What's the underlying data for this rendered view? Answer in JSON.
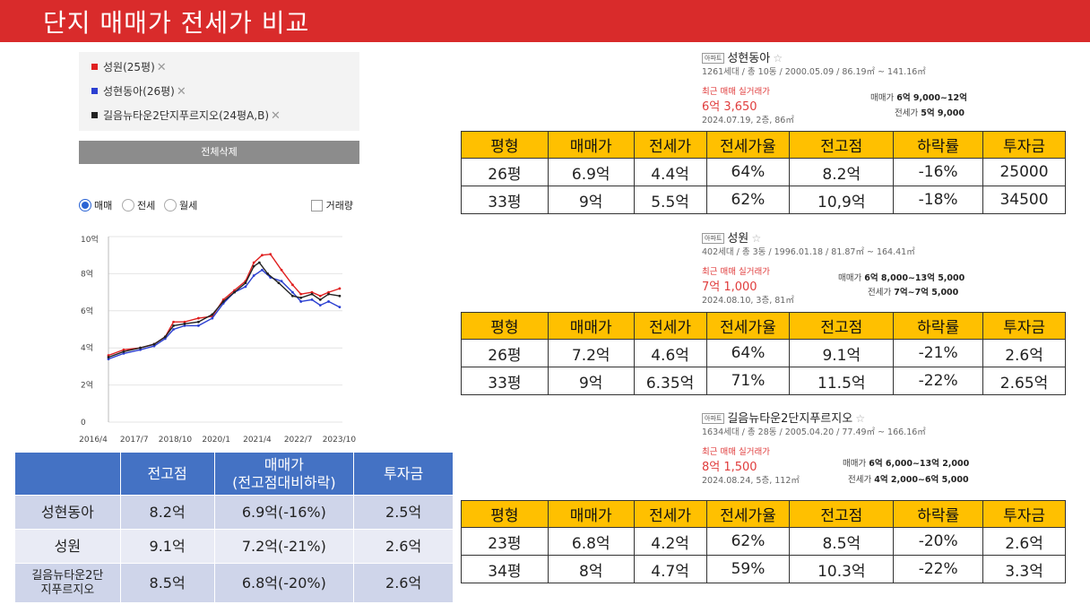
{
  "page_title": "단지 매매가 전세가 비교",
  "legend": {
    "items": [
      {
        "label": "성원(25평)",
        "color": "#e02020"
      },
      {
        "label": "성현동아(26평)",
        "color": "#2b3fd1"
      },
      {
        "label": "길음뉴타운2단지푸르지오(24평A,B)",
        "color": "#222222"
      }
    ],
    "remove_glyph": "✕",
    "clear_all_label": "전체삭제"
  },
  "filters": {
    "radios": [
      {
        "label": "매매",
        "selected": true
      },
      {
        "label": "전세",
        "selected": false
      },
      {
        "label": "월세",
        "selected": false
      }
    ],
    "volume_checkbox": {
      "label": "거래량",
      "checked": false
    }
  },
  "chart_data": {
    "type": "line",
    "x": [
      "2016/4",
      "2017/7",
      "2018/10",
      "2020/1",
      "2021/4",
      "2022/7",
      "2023/10"
    ],
    "y_ticks": [
      "0",
      "2억",
      "4억",
      "6억",
      "8억",
      "10억"
    ],
    "ylim": [
      0,
      10
    ],
    "xlim": [
      2016.25,
      2024.7
    ],
    "grid": true,
    "series": [
      {
        "name": "성원(25평)",
        "color": "#e02020",
        "points": [
          [
            2016.25,
            3.6
          ],
          [
            2016.8,
            3.9
          ],
          [
            2017.4,
            4.0
          ],
          [
            2017.9,
            4.2
          ],
          [
            2018.3,
            4.6
          ],
          [
            2018.6,
            5.4
          ],
          [
            2019.0,
            5.4
          ],
          [
            2019.5,
            5.6
          ],
          [
            2020.0,
            5.7
          ],
          [
            2020.4,
            6.6
          ],
          [
            2020.8,
            7.1
          ],
          [
            2021.2,
            7.6
          ],
          [
            2021.5,
            8.6
          ],
          [
            2021.8,
            9.0
          ],
          [
            2022.1,
            9.05
          ],
          [
            2022.5,
            8.2
          ],
          [
            2022.9,
            7.4
          ],
          [
            2023.2,
            6.9
          ],
          [
            2023.6,
            7.0
          ],
          [
            2023.9,
            6.8
          ],
          [
            2024.2,
            7.0
          ],
          [
            2024.6,
            7.2
          ]
        ]
      },
      {
        "name": "성현동아(26평)",
        "color": "#2b3fd1",
        "points": [
          [
            2016.25,
            3.4
          ],
          [
            2016.8,
            3.7
          ],
          [
            2017.4,
            3.9
          ],
          [
            2017.9,
            4.1
          ],
          [
            2018.3,
            4.5
          ],
          [
            2018.6,
            5.0
          ],
          [
            2019.0,
            5.2
          ],
          [
            2019.5,
            5.2
          ],
          [
            2020.0,
            5.6
          ],
          [
            2020.4,
            6.4
          ],
          [
            2020.8,
            7.0
          ],
          [
            2021.2,
            7.3
          ],
          [
            2021.5,
            7.9
          ],
          [
            2021.8,
            8.2
          ],
          [
            2022.1,
            7.8
          ],
          [
            2022.5,
            7.6
          ],
          [
            2022.9,
            7.0
          ],
          [
            2023.2,
            6.5
          ],
          [
            2023.6,
            6.6
          ],
          [
            2023.9,
            6.3
          ],
          [
            2024.2,
            6.5
          ],
          [
            2024.6,
            6.2
          ]
        ]
      },
      {
        "name": "길음뉴타운2단지푸르지오(24평A,B)",
        "color": "#222222",
        "points": [
          [
            2016.25,
            3.5
          ],
          [
            2016.8,
            3.8
          ],
          [
            2017.4,
            4.0
          ],
          [
            2017.9,
            4.2
          ],
          [
            2018.3,
            4.6
          ],
          [
            2018.6,
            5.2
          ],
          [
            2019.0,
            5.3
          ],
          [
            2019.5,
            5.4
          ],
          [
            2020.0,
            5.8
          ],
          [
            2020.4,
            6.5
          ],
          [
            2020.8,
            7.0
          ],
          [
            2021.2,
            7.5
          ],
          [
            2021.5,
            8.4
          ],
          [
            2021.7,
            8.6
          ],
          [
            2022.0,
            8.0
          ],
          [
            2022.4,
            7.5
          ],
          [
            2022.9,
            6.8
          ],
          [
            2023.2,
            6.7
          ],
          [
            2023.6,
            6.9
          ],
          [
            2023.9,
            6.6
          ],
          [
            2024.2,
            6.9
          ],
          [
            2024.6,
            6.8
          ]
        ]
      }
    ]
  },
  "comparison": {
    "headers": [
      "",
      "전고점",
      "매매가",
      "(전고점대비하락)",
      "투자금"
    ],
    "rows": [
      {
        "name": "성현동아",
        "peak": "8.2억",
        "price": "6.9억(-16%)",
        "invest": "2.5억"
      },
      {
        "name": "성원",
        "peak": "9.1억",
        "price": "7.2억(-21%)",
        "invest": "2.6억"
      },
      {
        "name": "길음뉴타운2단",
        "name2": "지푸르지오",
        "peak": "8.5억",
        "price": "6.8억(-20%)",
        "invest": "2.6억"
      }
    ]
  },
  "complexes": [
    {
      "tag": "아파트",
      "name": "성현동아",
      "meta": "1261세대 / 총 10동 / 2000.05.09 / 86.19㎡ ~ 141.16㎡",
      "recent_label": "최근 매매 실거래가",
      "recent_price": "6억 3,650",
      "recent_date": "2024.07.19, 2층, 86㎡",
      "sale_label": "매매가",
      "sale_range": "6억 9,000~12억",
      "jeonse_label": "전세가",
      "jeonse_range": "5억 9,000",
      "table": {
        "headers": [
          "평형",
          "매매가",
          "전세가",
          "전세가율",
          "전고점",
          "하락률",
          "투자금"
        ],
        "rows": [
          [
            "26평",
            "6.9억",
            "4.4억",
            "64%",
            "8.2억",
            "-16%",
            "25000"
          ],
          [
            "33평",
            "9억",
            "5.5억",
            "62%",
            "10,9억",
            "-18%",
            "34500"
          ]
        ]
      }
    },
    {
      "tag": "아파트",
      "name": "성원",
      "meta": "402세대 / 총 3동 / 1996.01.18 / 81.87㎡ ~ 164.41㎡",
      "recent_label": "최근 매매 실거래가",
      "recent_price": "7억 1,000",
      "recent_date": "2024.08.10, 3층, 81㎡",
      "sale_label": "매매가",
      "sale_range": "6억 8,000~13억 5,000",
      "jeonse_label": "전세가",
      "jeonse_range": "7억~7억 5,000",
      "table": {
        "headers": [
          "평형",
          "매매가",
          "전세가",
          "전세가율",
          "전고점",
          "하락률",
          "투자금"
        ],
        "rows": [
          [
            "26평",
            "7.2억",
            "4.6억",
            "64%",
            "9.1억",
            "-21%",
            "2.6억"
          ],
          [
            "33평",
            "9억",
            "6.35억",
            "71%",
            "11.5억",
            "-22%",
            "2.65억"
          ]
        ]
      }
    },
    {
      "tag": "아파트",
      "name": "길음뉴타운2단지푸르지오",
      "meta": "1634세대 / 총 28동 / 2005.04.20 / 77.49㎡ ~ 166.16㎡",
      "recent_label": "최근 매매 실거래가",
      "recent_price": "8억 1,500",
      "recent_date": "2024.08.24, 5층, 112㎡",
      "sale_label": "매매가",
      "sale_range": "6억 6,000~13억 2,000",
      "jeonse_label": "전세가",
      "jeonse_range": "4억 2,000~6억 5,000",
      "table": {
        "headers": [
          "평형",
          "매매가",
          "전세가",
          "전세가율",
          "전고점",
          "하락률",
          "투자금"
        ],
        "rows": [
          [
            "23평",
            "6.8억",
            "4.2억",
            "62%",
            "8.5억",
            "-20%",
            "2.6억"
          ],
          [
            "34평",
            "8억",
            "4.7억",
            "59%",
            "10.3억",
            "-22%",
            "3.3억"
          ]
        ]
      }
    }
  ]
}
